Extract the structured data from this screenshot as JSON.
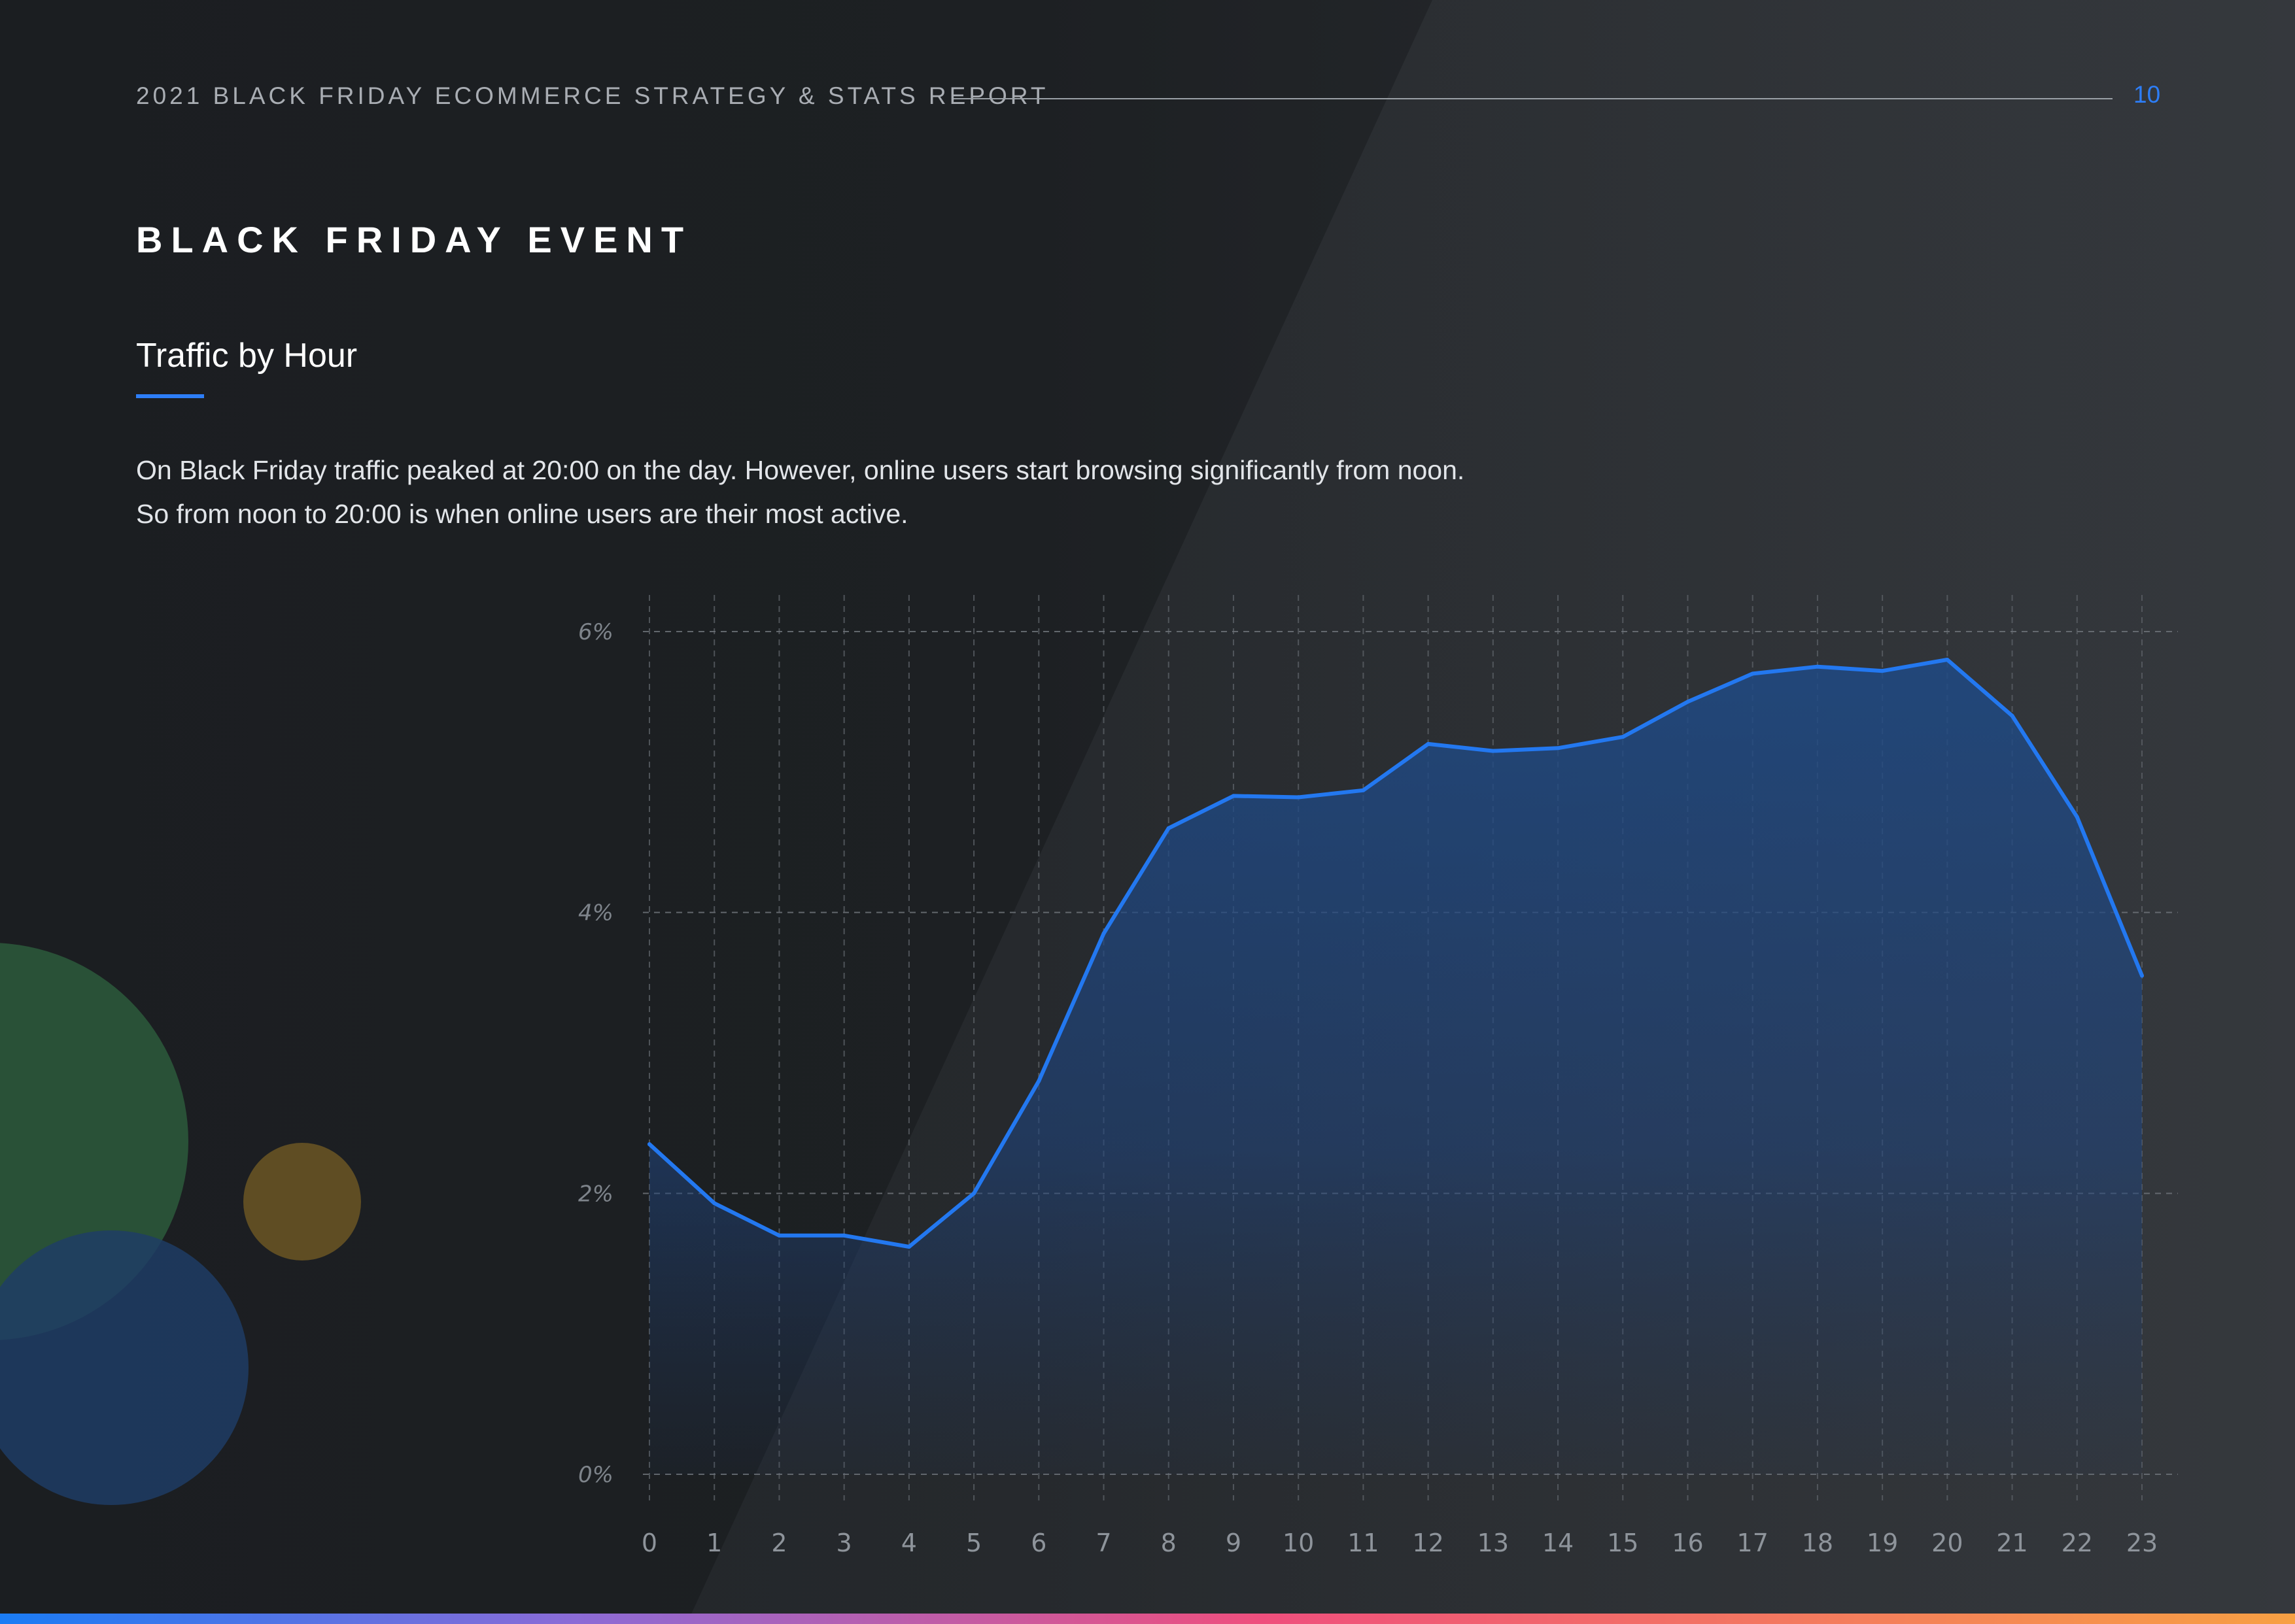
{
  "header": {
    "report_title": "2021 BLACK FRIDAY ECOMMERCE STRATEGY & STATS REPORT",
    "page_number": "10"
  },
  "section": {
    "title": "BLACK FRIDAY EVENT"
  },
  "chart_section": {
    "heading": "Traffic by Hour",
    "description_lines": [
      "On Black Friday traffic peaked at 20:00 on the day. However, online users start browsing significantly from noon.",
      "So from noon to 20:00 is when online users are their most active."
    ]
  },
  "colors": {
    "accent": "#2d7ef7",
    "background": "#1b1e21",
    "line": "#2378f0",
    "area": "#1f4a85",
    "bubble_green": "#2c5a3b",
    "bubble_blue": "#1e3d66",
    "bubble_gold": "#6b5623"
  },
  "chart_data": {
    "type": "area",
    "title": "",
    "xlabel": "",
    "ylabel": "",
    "x": [
      0,
      1,
      2,
      3,
      4,
      5,
      6,
      7,
      8,
      9,
      10,
      11,
      12,
      13,
      14,
      15,
      16,
      17,
      18,
      19,
      20,
      21,
      22,
      23
    ],
    "y": [
      2.35,
      1.93,
      1.7,
      1.7,
      1.62,
      2.0,
      2.8,
      3.85,
      4.6,
      4.83,
      4.82,
      4.87,
      5.2,
      5.15,
      5.17,
      5.25,
      5.5,
      5.7,
      5.75,
      5.72,
      5.8,
      5.4,
      4.68,
      3.55
    ],
    "ylim": [
      0,
      6
    ],
    "yticks": [
      0,
      2,
      4,
      6
    ],
    "ytick_labels": [
      "0%",
      "2%",
      "4%",
      "6%"
    ],
    "xtick_labels": [
      "0",
      "1",
      "2",
      "3",
      "4",
      "5",
      "6",
      "7",
      "8",
      "9",
      "10",
      "11",
      "12",
      "13",
      "14",
      "15",
      "16",
      "17",
      "18",
      "19",
      "20",
      "21",
      "22",
      "23"
    ],
    "grid": true
  }
}
